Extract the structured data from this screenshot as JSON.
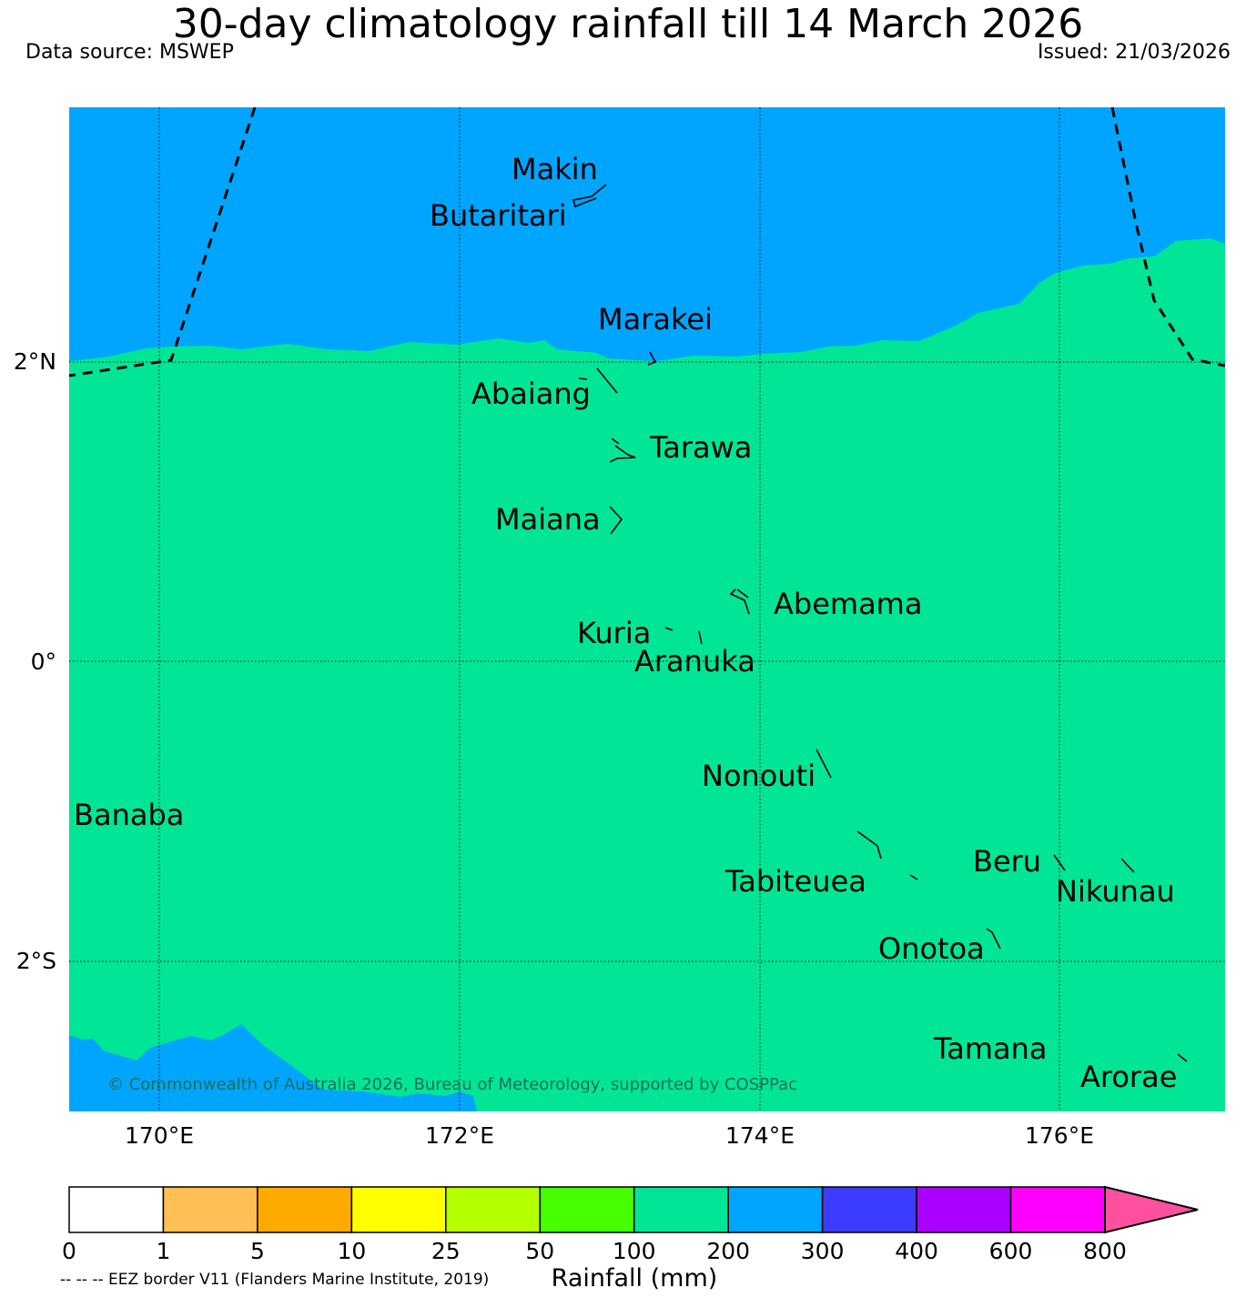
{
  "title": "30-day climatology rainfall till 14 March 2026",
  "data_source": "Data source: MSWEP",
  "issued": "Issued: 21/03/2026",
  "copyright": "© Commonwealth of Australia 2026, Bureau of Meteorology, supported by COSPPac",
  "eez_note": "-- -- -- EEZ border V11 (Flanders Marine Institute, 2019)",
  "colorbar": {
    "label": "Rainfall (mm)",
    "ticks": [
      "0",
      "1",
      "5",
      "10",
      "25",
      "50",
      "100",
      "200",
      "300",
      "400",
      "600",
      "800"
    ],
    "colors": [
      "#ffffff",
      "#ffbf55",
      "#ffaa00",
      "#ffff00",
      "#b4ff00",
      "#46ff00",
      "#00e696",
      "#00a5ff",
      "#3c3cff",
      "#aa00ff",
      "#ff00ff"
    ],
    "extend_color": "#ff50a0"
  },
  "map": {
    "lon_labels": [
      "170°E",
      "172°E",
      "174°E",
      "176°E"
    ],
    "lat_labels": [
      "2°N",
      "0°",
      "2°S"
    ],
    "colors": {
      "band_200_300": "#00a5ff",
      "band_100_200": "#00e696"
    },
    "places": [
      {
        "name": "Makin"
      },
      {
        "name": "Butaritari"
      },
      {
        "name": "Marakei"
      },
      {
        "name": "Abaiang"
      },
      {
        "name": "Tarawa"
      },
      {
        "name": "Maiana"
      },
      {
        "name": "Abemama"
      },
      {
        "name": "Kuria"
      },
      {
        "name": "Aranuka"
      },
      {
        "name": "Nonouti"
      },
      {
        "name": "Banaba"
      },
      {
        "name": "Beru"
      },
      {
        "name": "Tabiteuea"
      },
      {
        "name": "Nikunau"
      },
      {
        "name": "Onotoa"
      },
      {
        "name": "Tamana"
      },
      {
        "name": "Arorae"
      }
    ]
  }
}
